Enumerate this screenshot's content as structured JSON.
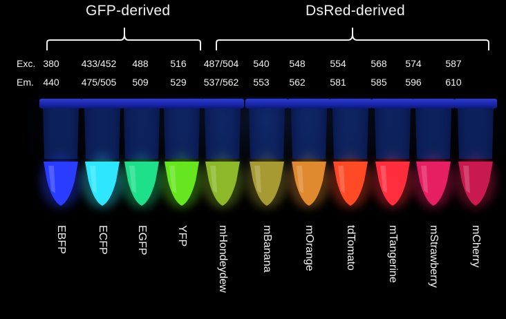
{
  "groups": [
    {
      "title": "GFP-derived"
    },
    {
      "title": "DsRed-derived"
    }
  ],
  "row_labels": {
    "exc": "Exc.",
    "em": "Em."
  },
  "proteins": [
    {
      "name": "EBFP",
      "exc": "380",
      "em": "440",
      "color": "#2a3cff"
    },
    {
      "name": "ECFP",
      "exc": "433/452",
      "em": "475/505",
      "color": "#2fe6ff"
    },
    {
      "name": "EGFP",
      "exc": "488",
      "em": "509",
      "color": "#1fe08a"
    },
    {
      "name": "YFP",
      "exc": "516",
      "em": "529",
      "color": "#66e61e"
    },
    {
      "name": "mHondeydew",
      "exc": "487/504",
      "em": "537/562",
      "color": "#8cb82a"
    },
    {
      "name": "mBanana",
      "exc": "540",
      "em": "553",
      "color": "#a89a32"
    },
    {
      "name": "mOrange",
      "exc": "548",
      "em": "562",
      "color": "#e08a30"
    },
    {
      "name": "tdTomato",
      "exc": "554",
      "em": "581",
      "color": "#ff4a26"
    },
    {
      "name": "mTangerine",
      "exc": "568",
      "em": "585",
      "color": "#ff2e3c"
    },
    {
      "name": "mStrawberry",
      "exc": "574",
      "em": "596",
      "color": "#e61e62"
    },
    {
      "name": "mCherry",
      "exc": "587",
      "em": "610",
      "color": "#c81a4e"
    }
  ]
}
